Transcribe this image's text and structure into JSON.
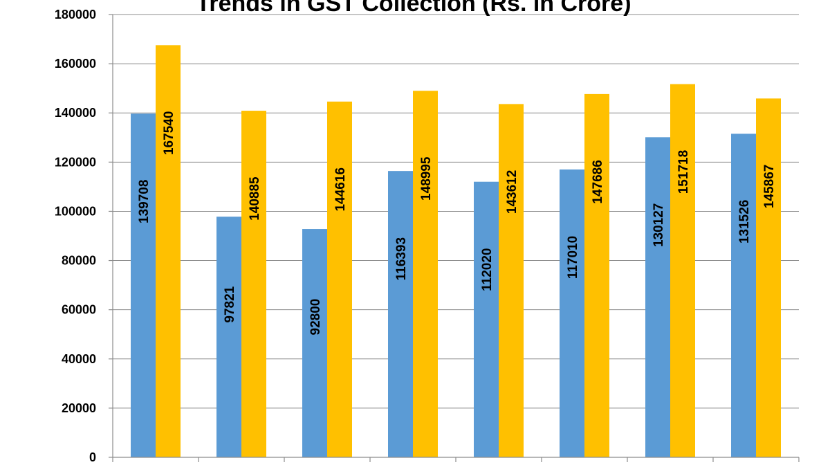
{
  "chart_data": {
    "type": "bar",
    "title": "Trends in GST Collection (Rs. in Crore)",
    "xlabel": "",
    "ylabel": "",
    "categories": [
      "",
      "",
      "",
      "",
      "",
      "",
      "",
      ""
    ],
    "ylim": [
      0,
      180000
    ],
    "yticks": [
      0,
      20000,
      40000,
      60000,
      80000,
      100000,
      120000,
      140000,
      160000,
      180000
    ],
    "grid": true,
    "legend": "none",
    "series": [
      {
        "color": "#5b9bd5",
        "values": [
          139708,
          97821,
          92800,
          116393,
          112020,
          117010,
          130127,
          131526
        ]
      },
      {
        "color": "#ffc000",
        "values": [
          167540,
          140885,
          144616,
          148995,
          143612,
          147686,
          151718,
          145867
        ]
      }
    ]
  }
}
